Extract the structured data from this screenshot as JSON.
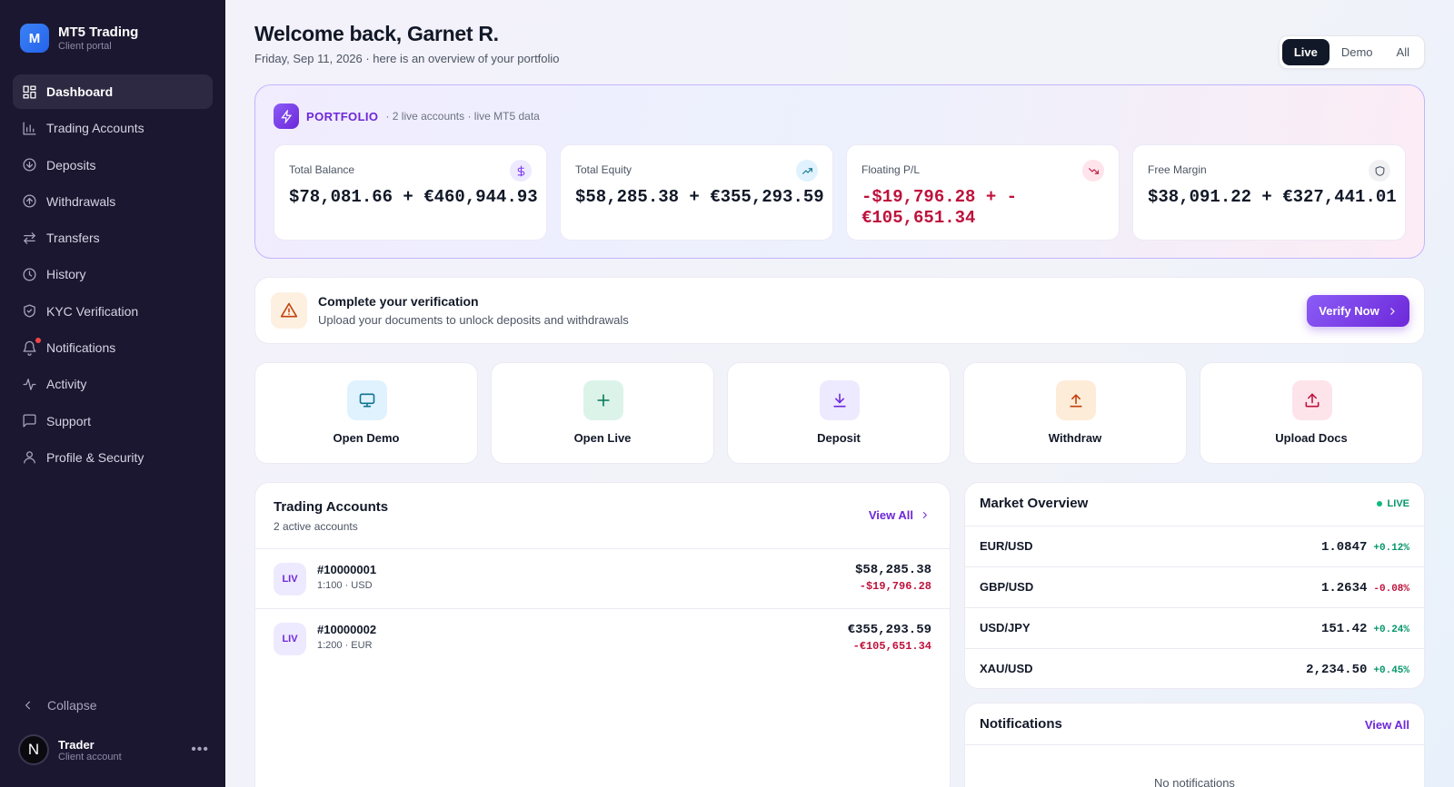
{
  "brand": {
    "logo_letter": "M",
    "name": "MT5 Trading",
    "subtitle": "Client portal"
  },
  "sidebar": {
    "items": [
      {
        "label": "Dashboard",
        "icon": "grid-icon",
        "active": true
      },
      {
        "label": "Trading Accounts",
        "icon": "bar-chart-icon"
      },
      {
        "label": "Deposits",
        "icon": "arrow-down-circle-icon"
      },
      {
        "label": "Withdrawals",
        "icon": "arrow-up-circle-icon"
      },
      {
        "label": "Transfers",
        "icon": "swap-icon"
      },
      {
        "label": "History",
        "icon": "clock-icon"
      },
      {
        "label": "KYC Verification",
        "icon": "shield-check-icon"
      },
      {
        "label": "Notifications",
        "icon": "bell-icon",
        "has_dot": true
      },
      {
        "label": "Activity",
        "icon": "activity-icon"
      },
      {
        "label": "Support",
        "icon": "message-square-icon"
      },
      {
        "label": "Profile & Security",
        "icon": "user-icon"
      }
    ],
    "collapse_label": "Collapse",
    "user": {
      "avatar_letter": "N",
      "name": "Trader",
      "role": "Client account",
      "more": "•••"
    }
  },
  "header": {
    "welcome": "Welcome back, Garnet R.",
    "subtitle": "Friday, Sep 11, 2026 · here is an overview of your portfolio",
    "filters": [
      "Live",
      "Demo",
      "All"
    ],
    "active_filter": "Live"
  },
  "portfolio": {
    "title": "PORTFOLIO",
    "meta": "· 2 live accounts · live MT5 data",
    "stats": [
      {
        "label": "Total Balance",
        "value": "$78,081.66 + €460,944.93",
        "icon": "dollar-icon",
        "negative": false
      },
      {
        "label": "Total Equity",
        "value": "$58,285.38 + €355,293.59",
        "icon": "trending-up-icon",
        "negative": false
      },
      {
        "label": "Floating P/L",
        "value": "-$19,796.28 + -€105,651.34",
        "icon": "trending-down-icon",
        "negative": true
      },
      {
        "label": "Free Margin",
        "value": "$38,091.22 + €327,441.01",
        "icon": "shield-icon",
        "negative": false
      }
    ]
  },
  "verification": {
    "title": "Complete your verification",
    "subtitle": "Upload your documents to unlock deposits and withdrawals",
    "button": "Verify Now"
  },
  "actions": [
    {
      "label": "Open Demo",
      "icon": "monitor-icon"
    },
    {
      "label": "Open Live",
      "icon": "plus-icon"
    },
    {
      "label": "Deposit",
      "icon": "download-icon"
    },
    {
      "label": "Withdraw",
      "icon": "arrow-up-icon"
    },
    {
      "label": "Upload Docs",
      "icon": "upload-icon"
    }
  ],
  "trading_accounts": {
    "title": "Trading Accounts",
    "subtitle": "2 active accounts",
    "view_all": "View All",
    "rows": [
      {
        "badge": "LIV",
        "id": "#10000001",
        "meta": "1:100 · USD",
        "balance": "$58,285.38",
        "pl": "-$19,796.28"
      },
      {
        "badge": "LIV",
        "id": "#10000002",
        "meta": "1:200 · EUR",
        "balance": "€355,293.59",
        "pl": "-€105,651.34"
      }
    ]
  },
  "market": {
    "title": "Market Overview",
    "live_label": "LIVE",
    "rows": [
      {
        "symbol": "EUR/USD",
        "price": "1.0847",
        "change": "+0.12%",
        "direction": "up"
      },
      {
        "symbol": "GBP/USD",
        "price": "1.2634",
        "change": "-0.08%",
        "direction": "down"
      },
      {
        "symbol": "USD/JPY",
        "price": "151.42",
        "change": "+0.24%",
        "direction": "up"
      },
      {
        "symbol": "XAU/USD",
        "price": "2,234.50",
        "change": "+0.45%",
        "direction": "up"
      }
    ]
  },
  "notifications": {
    "title": "Notifications",
    "view_all": "View All",
    "empty": "No notifications"
  },
  "colors": {
    "accent": "#6d28d9",
    "sidebar_bg": "#1b1730",
    "negative": "#be123c",
    "positive": "#059669"
  }
}
